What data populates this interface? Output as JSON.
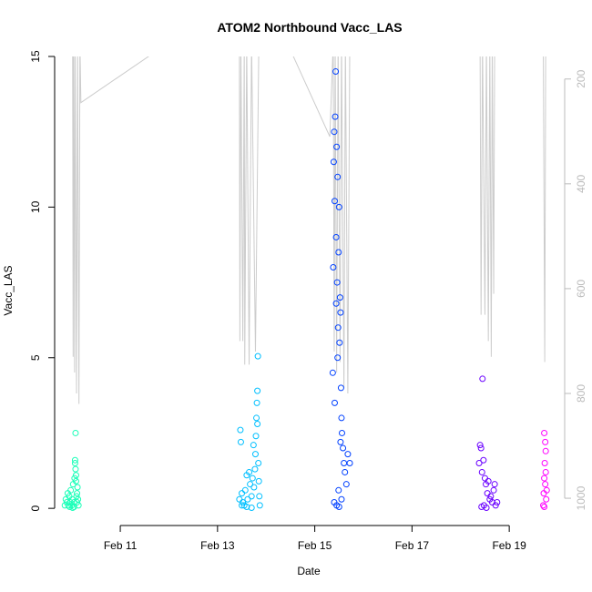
{
  "chart_data": {
    "type": "scatter",
    "title": "ATOM2 Northbound Vacc_LAS",
    "x_label": "Date",
    "y_label": "Vacc_LAS",
    "xlim": [
      9.65,
      20.14
    ],
    "xticks": [
      {
        "value": 11,
        "label": "Feb 11"
      },
      {
        "value": 13,
        "label": "Feb 13"
      },
      {
        "value": 15,
        "label": "Feb 15"
      },
      {
        "value": 17,
        "label": "Feb 17"
      },
      {
        "value": 19,
        "label": "Feb 19"
      }
    ],
    "ylim": [
      -0.57,
      15
    ],
    "yticks": [
      0,
      5,
      10,
      15
    ],
    "y2lim": [
      1052,
      157
    ],
    "y2ticks": [
      200,
      400,
      600,
      800,
      1000
    ],
    "series": [
      {
        "type": "line",
        "axis": "y2",
        "color": "#cccccc",
        "x": [
          10.02,
          10.03,
          10.04,
          10.06,
          10.07,
          10.1,
          10.12,
          10.15,
          10.17,
          10.19,
          11.58,
          11.7,
          13.45,
          13.46,
          13.48,
          13.52,
          13.55,
          13.56,
          13.6,
          13.65,
          13.7,
          13.78,
          13.85,
          14.5,
          14.56,
          15.31,
          15.38,
          15.4,
          15.42,
          15.45,
          15.48,
          15.52,
          15.55,
          15.6,
          15.63,
          15.68,
          15.72,
          18.4,
          18.42,
          18.45,
          18.5,
          18.53,
          18.57,
          18.6,
          18.63,
          18.65,
          18.68,
          18.7,
          19.7,
          19.73,
          19.75
        ],
        "values": [
          130,
          730,
          130,
          760,
          130,
          800,
          130,
          820,
          130,
          245,
          157,
          130,
          130,
          700,
          130,
          700,
          130,
          745,
          130,
          745,
          130,
          720,
          130,
          130,
          157,
          310,
          130,
          720,
          130,
          760,
          130,
          740,
          130,
          790,
          130,
          800,
          130,
          130,
          650,
          130,
          650,
          130,
          700,
          130,
          730,
          130,
          610,
          130,
          130,
          740,
          130
        ]
      },
      {
        "type": "scatter",
        "color": "#1affb8",
        "x": [
          9.86,
          9.88,
          9.9,
          9.92,
          9.93,
          9.95,
          9.97,
          9.98,
          10.0,
          10.01,
          10.03,
          10.05,
          10.06,
          10.07,
          10.08,
          10.08,
          10.09,
          10.1,
          10.11,
          10.12,
          10.13,
          10.14,
          10.05,
          10.07,
          9.96,
          10.02,
          10.09,
          10.11
        ],
        "values": [
          0.1,
          0.3,
          0.2,
          0.5,
          0.1,
          0.4,
          0.2,
          0.6,
          0.1,
          0.3,
          0.8,
          0.2,
          1.0,
          1.5,
          2.5,
          1.3,
          0.9,
          0.4,
          0.2,
          0.7,
          0.3,
          0.1,
          0.05,
          1.6,
          0.05,
          0.02,
          1.1,
          0.5
        ]
      },
      {
        "type": "scatter",
        "color": "#00bfff",
        "x": [
          13.45,
          13.47,
          13.48,
          13.5,
          13.52,
          13.55,
          13.57,
          13.6,
          13.62,
          13.65,
          13.67,
          13.7,
          13.72,
          13.74,
          13.75,
          13.77,
          13.78,
          13.79,
          13.8,
          13.81,
          13.82,
          13.82,
          13.83,
          13.84,
          13.85,
          13.86,
          13.87,
          13.6,
          13.7,
          13.5
        ],
        "values": [
          0.3,
          2.6,
          2.2,
          0.5,
          0.2,
          0.1,
          0.6,
          1.1,
          0.3,
          1.2,
          0.8,
          0.4,
          1.0,
          2.1,
          0.7,
          1.3,
          1.8,
          2.4,
          3.0,
          3.5,
          3.9,
          2.8,
          5.05,
          1.5,
          0.9,
          0.4,
          0.1,
          0.05,
          0.02,
          0.1
        ]
      },
      {
        "type": "scatter",
        "color": "#0040ff",
        "x": [
          15.37,
          15.38,
          15.39,
          15.4,
          15.41,
          15.42,
          15.43,
          15.44,
          15.45,
          15.46,
          15.47,
          15.48,
          15.49,
          15.5,
          15.51,
          15.52,
          15.53,
          15.54,
          15.55,
          15.56,
          15.58,
          15.6,
          15.62,
          15.65,
          15.68,
          15.72,
          15.4,
          15.45,
          15.5,
          15.55,
          15.41,
          15.47,
          15.53,
          15.44,
          15.49
        ],
        "values": [
          4.5,
          8.0,
          11.5,
          12.5,
          10.2,
          13.0,
          14.5,
          9.0,
          12.0,
          7.5,
          11.0,
          6.0,
          8.5,
          10.0,
          5.5,
          7.0,
          6.5,
          4.0,
          3.0,
          2.5,
          2.0,
          1.5,
          1.2,
          0.8,
          1.8,
          1.5,
          0.2,
          0.1,
          0.05,
          0.3,
          3.5,
          5.0,
          2.2,
          6.8,
          0.6
        ]
      },
      {
        "type": "scatter",
        "color": "#6a00ff",
        "x": [
          18.38,
          18.4,
          18.42,
          18.44,
          18.45,
          18.47,
          18.5,
          18.52,
          18.55,
          18.57,
          18.6,
          18.62,
          18.65,
          18.68,
          18.7,
          18.72,
          18.75,
          18.43,
          18.48,
          18.53
        ],
        "values": [
          1.5,
          2.1,
          2.0,
          1.2,
          4.3,
          1.6,
          1.0,
          0.8,
          0.5,
          0.9,
          0.3,
          0.4,
          0.2,
          0.6,
          0.8,
          0.1,
          0.2,
          0.05,
          0.1,
          0.02
        ]
      },
      {
        "type": "scatter",
        "color": "#ff00ff",
        "x": [
          19.7,
          19.71,
          19.72,
          19.72,
          19.73,
          19.74,
          19.74,
          19.75,
          19.76,
          19.77,
          19.72,
          19.75
        ],
        "values": [
          0.1,
          0.5,
          1.0,
          2.5,
          1.5,
          2.2,
          0.8,
          1.9,
          0.3,
          0.6,
          0.05,
          1.2
        ]
      }
    ]
  }
}
